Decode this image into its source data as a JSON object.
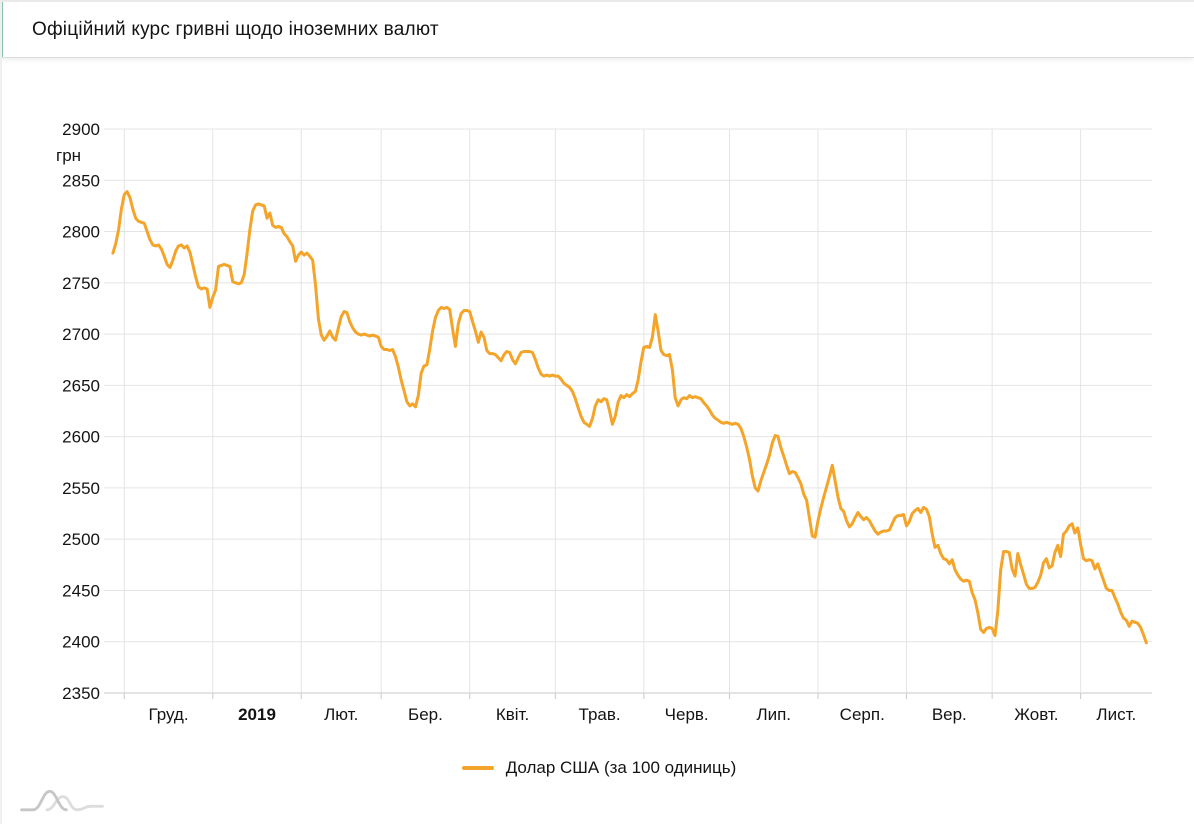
{
  "header": {
    "title": "Офіційний курс гривні щодо іноземних валют"
  },
  "colors": {
    "accent_teal": "#85c4ad",
    "series_orange": "#F4A428",
    "gridline": "#e4e4e4",
    "axis_line": "#c9c9c9",
    "text_primary": "#141414"
  },
  "watermark": {
    "name": "amcharts-waves-logo"
  },
  "chart_data": {
    "type": "line",
    "title": "Офіційний курс гривні щодо іноземних валют",
    "ylabel": "грн",
    "xlabel": "",
    "grid": true,
    "ylim": [
      2350,
      2900
    ],
    "y_ticks": [
      2900,
      2850,
      2800,
      2750,
      2700,
      2650,
      2600,
      2550,
      2500,
      2450,
      2400,
      2350
    ],
    "x_ticks": [
      {
        "label": "Груд.",
        "bold": false
      },
      {
        "label": "2019",
        "bold": true
      },
      {
        "label": "Лют.",
        "bold": false
      },
      {
        "label": "Бер.",
        "bold": false
      },
      {
        "label": "Квіт.",
        "bold": false
      },
      {
        "label": "Трав.",
        "bold": false
      },
      {
        "label": "Черв.",
        "bold": false
      },
      {
        "label": "Лип.",
        "bold": false
      },
      {
        "label": "Серп.",
        "bold": false
      },
      {
        "label": "Вер.",
        "bold": false
      },
      {
        "label": "Жовт.",
        "bold": false
      },
      {
        "label": "Лист.",
        "bold": false
      }
    ],
    "x_domain_days": [
      0,
      365
    ],
    "month_boundaries_days": [
      5,
      36,
      67,
      95,
      126,
      156,
      187,
      217,
      248,
      279,
      309,
      340
    ],
    "legend": {
      "position": "bottom",
      "items": [
        {
          "label": "Долар США (за 100 одиниць)",
          "color": "#F4A428"
        }
      ]
    },
    "series": [
      {
        "name": "Долар США (за 100 одиниць)",
        "color": "#F4A428",
        "x_start_day": 1,
        "x_step_days": 1,
        "values": [
          2779,
          2788,
          2802,
          2822,
          2836,
          2839,
          2833,
          2822,
          2813,
          2810,
          2809,
          2808,
          2800,
          2792,
          2787,
          2786,
          2787,
          2783,
          2776,
          2768,
          2765,
          2772,
          2781,
          2786,
          2787,
          2784,
          2786,
          2780,
          2768,
          2756,
          2746,
          2744,
          2745,
          2744,
          2726,
          2736,
          2743,
          2766,
          2767,
          2768,
          2767,
          2766,
          2751,
          2750,
          2749,
          2750,
          2758,
          2778,
          2802,
          2820,
          2826,
          2827,
          2826,
          2825,
          2813,
          2818,
          2806,
          2804,
          2805,
          2804,
          2798,
          2795,
          2790,
          2786,
          2771,
          2777,
          2780,
          2777,
          2779,
          2776,
          2772,
          2748,
          2715,
          2699,
          2694,
          2698,
          2703,
          2697,
          2694,
          2706,
          2717,
          2722,
          2721,
          2712,
          2706,
          2702,
          2700,
          2699,
          2700,
          2699,
          2698,
          2699,
          2698,
          2697,
          2688,
          2685,
          2685,
          2684,
          2685,
          2678,
          2668,
          2655,
          2645,
          2634,
          2630,
          2632,
          2629,
          2640,
          2662,
          2669,
          2670,
          2685,
          2703,
          2716,
          2723,
          2726,
          2725,
          2726,
          2724,
          2705,
          2688,
          2710,
          2720,
          2723,
          2723,
          2722,
          2712,
          2703,
          2692,
          2702,
          2697,
          2684,
          2681,
          2681,
          2680,
          2677,
          2674,
          2680,
          2683,
          2682,
          2675,
          2671,
          2677,
          2682,
          2683,
          2683,
          2683,
          2682,
          2675,
          2667,
          2661,
          2659,
          2660,
          2659,
          2660,
          2659,
          2659,
          2656,
          2652,
          2650,
          2648,
          2644,
          2637,
          2628,
          2620,
          2614,
          2612,
          2610,
          2618,
          2630,
          2636,
          2634,
          2637,
          2636,
          2625,
          2612,
          2620,
          2634,
          2640,
          2638,
          2641,
          2639,
          2642,
          2644,
          2655,
          2673,
          2687,
          2688,
          2687,
          2697,
          2719,
          2703,
          2684,
          2680,
          2679,
          2680,
          2665,
          2638,
          2630,
          2636,
          2638,
          2637,
          2640,
          2638,
          2639,
          2638,
          2637,
          2633,
          2630,
          2626,
          2621,
          2618,
          2616,
          2614,
          2613,
          2614,
          2613,
          2612,
          2613,
          2612,
          2608,
          2600,
          2590,
          2578,
          2562,
          2550,
          2547,
          2557,
          2565,
          2573,
          2582,
          2594,
          2601,
          2600,
          2589,
          2581,
          2572,
          2564,
          2566,
          2565,
          2560,
          2554,
          2544,
          2538,
          2521,
          2503,
          2502,
          2518,
          2530,
          2541,
          2551,
          2561,
          2572,
          2557,
          2541,
          2530,
          2527,
          2518,
          2512,
          2515,
          2521,
          2526,
          2522,
          2519,
          2521,
          2518,
          2513,
          2508,
          2505,
          2507,
          2508,
          2508,
          2509,
          2515,
          2521,
          2523,
          2523,
          2524,
          2513,
          2517,
          2525,
          2528,
          2530,
          2526,
          2531,
          2529,
          2522,
          2505,
          2492,
          2494,
          2486,
          2481,
          2480,
          2476,
          2480,
          2470,
          2465,
          2461,
          2459,
          2460,
          2459,
          2448,
          2441,
          2428,
          2412,
          2409,
          2413,
          2414,
          2413,
          2406,
          2430,
          2470,
          2488,
          2488,
          2487,
          2471,
          2464,
          2486,
          2475,
          2466,
          2456,
          2452,
          2452,
          2453,
          2458,
          2465,
          2477,
          2481,
          2472,
          2474,
          2487,
          2494,
          2483,
          2505,
          2508,
          2513,
          2515,
          2506,
          2511,
          2495,
          2481,
          2479,
          2480,
          2479,
          2471,
          2476,
          2468,
          2460,
          2452,
          2450,
          2450,
          2443,
          2437,
          2429,
          2423,
          2421,
          2415,
          2420,
          2419,
          2418,
          2414,
          2407,
          2399
        ]
      }
    ]
  }
}
